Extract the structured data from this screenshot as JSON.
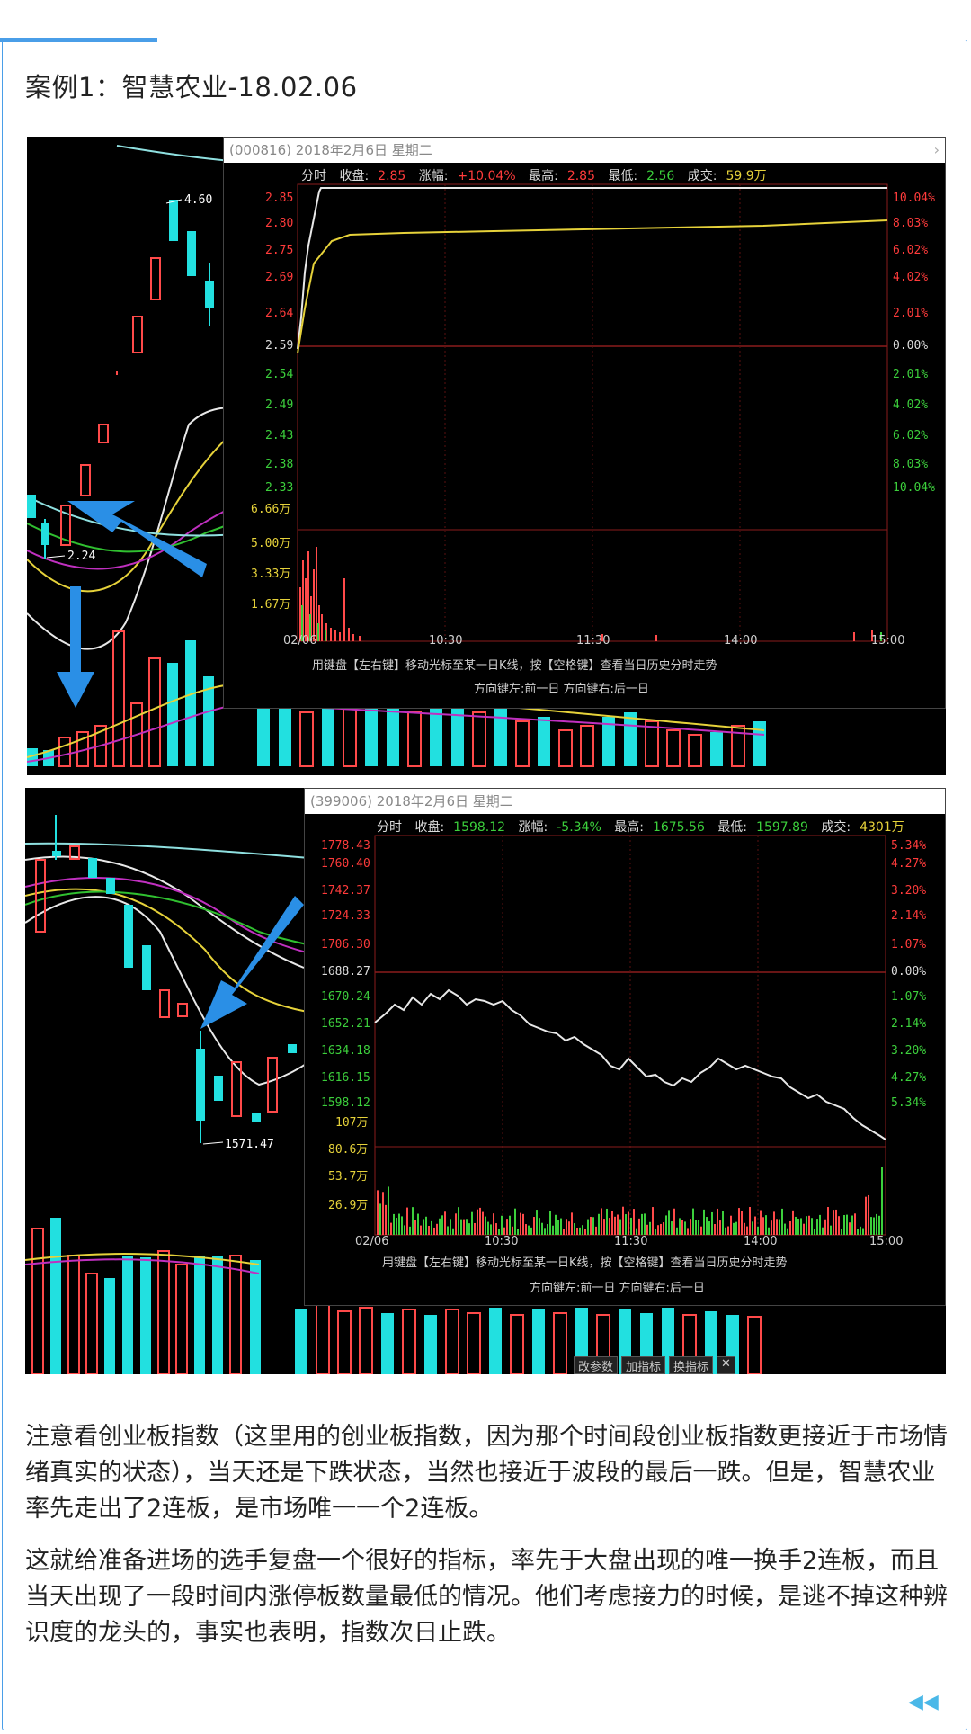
{
  "title": "案例1：智慧农业-18.02.06",
  "chart1": {
    "header": "(000816) 2018年2月6日 星期二",
    "close_glyph": "›",
    "quote": {
      "label": "分时",
      "close_label": "收盘:",
      "close": "2.85",
      "chg_label": "涨幅:",
      "chg": "+10.04%",
      "high_label": "最高:",
      "high": "2.85",
      "low_label": "最低:",
      "low": "2.56",
      "vol_label": "成交:",
      "vol": "59.9万"
    },
    "price_labels": [
      "2.85",
      "2.80",
      "2.75",
      "2.69",
      "2.64",
      "2.59",
      "2.54",
      "2.49",
      "2.43",
      "2.38",
      "2.33"
    ],
    "pct_labels": [
      "10.04%",
      "8.03%",
      "6.02%",
      "4.02%",
      "2.01%",
      "0.00%",
      "2.01%",
      "4.02%",
      "6.02%",
      "8.03%",
      "10.04%"
    ],
    "vol_labels": [
      "6.66万",
      "5.00万",
      "3.33万",
      "1.67万"
    ],
    "time_labels": [
      "02/06",
      "10:30",
      "11:30",
      "14:00",
      "15:00"
    ],
    "hint1": "用键盘【左右键】移动光标至某一日K线，按【空格键】查看当日历史分时走势",
    "hint2": "方向键左:前一日    方向键右:后一日",
    "kline_labels": {
      "high": "4.60",
      "low": "2.24"
    }
  },
  "chart2": {
    "header": "(399006) 2018年2月6日 星期二",
    "quote": {
      "label": "分时",
      "close_label": "收盘:",
      "close": "1598.12",
      "chg_label": "涨幅:",
      "chg": "-5.34%",
      "high_label": "最高:",
      "high": "1675.56",
      "low_label": "最低:",
      "low": "1597.89",
      "vol_label": "成交:",
      "vol": "4301万"
    },
    "price_labels": [
      "1778.43",
      "1760.40",
      "1742.37",
      "1724.33",
      "1706.30",
      "1688.27",
      "1670.24",
      "1652.21",
      "1634.18",
      "1616.15",
      "1598.12"
    ],
    "pct_labels": [
      "5.34%",
      "4.27%",
      "3.20%",
      "2.14%",
      "1.07%",
      "0.00%",
      "1.07%",
      "2.14%",
      "3.20%",
      "4.27%",
      "5.34%"
    ],
    "vol_labels": [
      "107万",
      "80.6万",
      "53.7万",
      "26.9万"
    ],
    "time_labels": [
      "02/06",
      "10:30",
      "11:30",
      "14:00",
      "15:00"
    ],
    "hint1": "用键盘【左右键】移动光标至某一日K线，按【空格键】查看当日历史分时走势",
    "hint2": "方向键左:前一日    方向键右:后一日",
    "kline_labels": {
      "low": "1571.47"
    },
    "bottom_buttons": [
      "改参数",
      "加指标",
      "换指标"
    ]
  },
  "paragraph1": "注意看创业板指数（这里用的创业板指数，因为那个时间段创业板指数更接近于市场情绪真实的状态），当天还是下跌状态，当然也接近于波段的最后一跌。但是，智慧农业率先走出了2连板，是市场唯一一个2连板。",
  "paragraph2": "这就给准备进场的选手复盘一个很好的指标，率先于大盘出现的唯一换手2连板，而且当天出现了一段时间内涨停板数量最低的情况。他们考虑接力的时候，是逃不掉这种辨识度的龙头的，事实也表明，指数次日止跌。"
}
